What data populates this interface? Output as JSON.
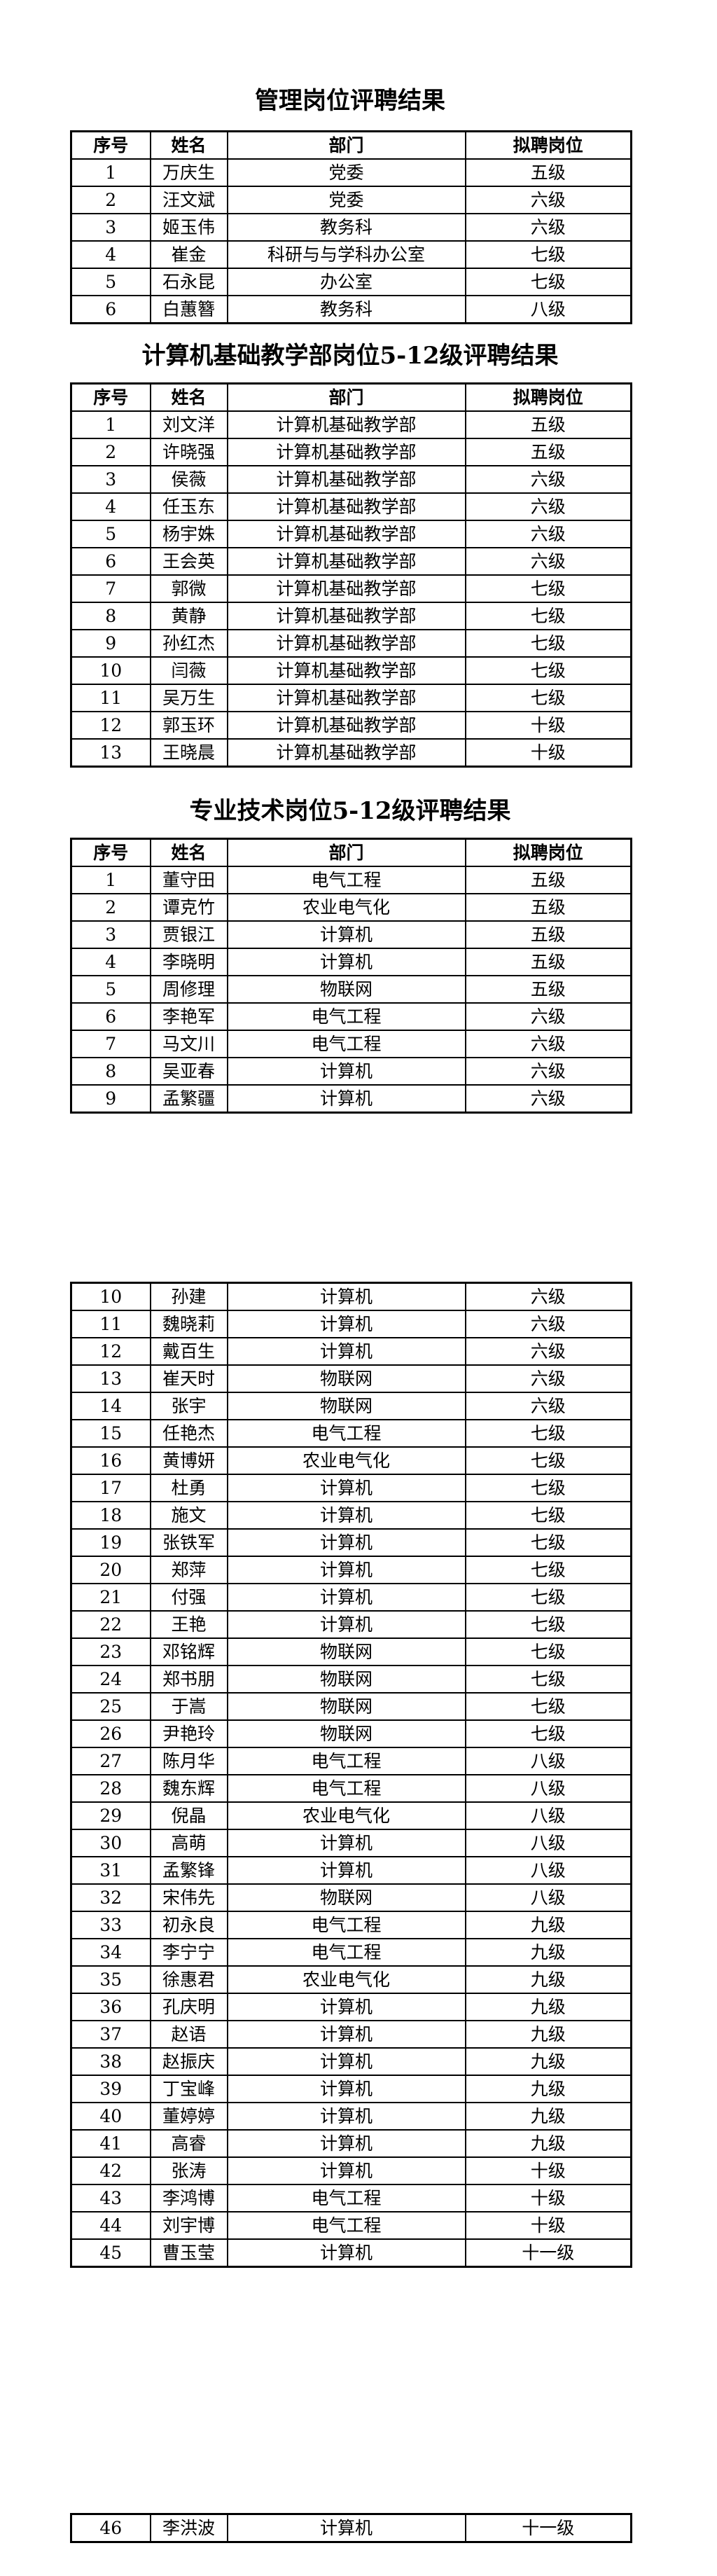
{
  "page": {
    "background": "#ffffff",
    "text_color": "#000000",
    "border_color": "#000000"
  },
  "sections": [
    {
      "title": "管理岗位评聘结果",
      "headers": [
        "序号",
        "姓名",
        "部门",
        "拟聘岗位"
      ],
      "rows": [
        [
          "1",
          "万庆生",
          "党委",
          "五级"
        ],
        [
          "2",
          "汪文斌",
          "党委",
          "六级"
        ],
        [
          "3",
          "姬玉伟",
          "教务科",
          "六级"
        ],
        [
          "4",
          "崔金",
          "科研与与学科办公室",
          "七级"
        ],
        [
          "5",
          "石永昆",
          "办公室",
          "七级"
        ],
        [
          "6",
          "白蕙簪",
          "教务科",
          "八级"
        ]
      ]
    },
    {
      "title": "计算机基础教学部岗位5-12级评聘结果",
      "headers": [
        "序号",
        "姓名",
        "部门",
        "拟聘岗位"
      ],
      "rows": [
        [
          "1",
          "刘文洋",
          "计算机基础教学部",
          "五级"
        ],
        [
          "2",
          "许晓强",
          "计算机基础教学部",
          "五级"
        ],
        [
          "3",
          "侯薇",
          "计算机基础教学部",
          "六级"
        ],
        [
          "4",
          "任玉东",
          "计算机基础教学部",
          "六级"
        ],
        [
          "5",
          "杨宇姝",
          "计算机基础教学部",
          "六级"
        ],
        [
          "6",
          "王会英",
          "计算机基础教学部",
          "六级"
        ],
        [
          "7",
          "郭微",
          "计算机基础教学部",
          "七级"
        ],
        [
          "8",
          "黄静",
          "计算机基础教学部",
          "七级"
        ],
        [
          "9",
          "孙红杰",
          "计算机基础教学部",
          "七级"
        ],
        [
          "10",
          "闫薇",
          "计算机基础教学部",
          "七级"
        ],
        [
          "11",
          "吴万生",
          "计算机基础教学部",
          "七级"
        ],
        [
          "12",
          "郭玉环",
          "计算机基础教学部",
          "十级"
        ],
        [
          "13",
          "王晓晨",
          "计算机基础教学部",
          "十级"
        ]
      ]
    },
    {
      "title": "专业技术岗位5-12级评聘结果",
      "headers": [
        "序号",
        "姓名",
        "部门",
        "拟聘岗位"
      ],
      "rows_page1": [
        [
          "1",
          "董守田",
          "电气工程",
          "五级"
        ],
        [
          "2",
          "谭克竹",
          "农业电气化",
          "五级"
        ],
        [
          "3",
          "贾银江",
          "计算机",
          "五级"
        ],
        [
          "4",
          "李晓明",
          "计算机",
          "五级"
        ],
        [
          "5",
          "周修理",
          "物联网",
          "五级"
        ],
        [
          "6",
          "李艳军",
          "电气工程",
          "六级"
        ],
        [
          "7",
          "马文川",
          "电气工程",
          "六级"
        ],
        [
          "8",
          "吴亚春",
          "计算机",
          "六级"
        ],
        [
          "9",
          "孟繁疆",
          "计算机",
          "六级"
        ]
      ],
      "rows_page2": [
        [
          "10",
          "孙建",
          "计算机",
          "六级"
        ],
        [
          "11",
          "魏晓莉",
          "计算机",
          "六级"
        ],
        [
          "12",
          "戴百生",
          "计算机",
          "六级"
        ],
        [
          "13",
          "崔天时",
          "物联网",
          "六级"
        ],
        [
          "14",
          "张宇",
          "物联网",
          "六级"
        ],
        [
          "15",
          "任艳杰",
          "电气工程",
          "七级"
        ],
        [
          "16",
          "黄博妍",
          "农业电气化",
          "七级"
        ],
        [
          "17",
          "杜勇",
          "计算机",
          "七级"
        ],
        [
          "18",
          "施文",
          "计算机",
          "七级"
        ],
        [
          "19",
          "张铁军",
          "计算机",
          "七级"
        ],
        [
          "20",
          "郑萍",
          "计算机",
          "七级"
        ],
        [
          "21",
          "付强",
          "计算机",
          "七级"
        ],
        [
          "22",
          "王艳",
          "计算机",
          "七级"
        ],
        [
          "23",
          "邓铭辉",
          "物联网",
          "七级"
        ],
        [
          "24",
          "郑书朋",
          "物联网",
          "七级"
        ],
        [
          "25",
          "于嵩",
          "物联网",
          "七级"
        ],
        [
          "26",
          "尹艳玲",
          "物联网",
          "七级"
        ],
        [
          "27",
          "陈月华",
          "电气工程",
          "八级"
        ],
        [
          "28",
          "魏东辉",
          "电气工程",
          "八级"
        ],
        [
          "29",
          "倪晶",
          "农业电气化",
          "八级"
        ],
        [
          "30",
          "高萌",
          "计算机",
          "八级"
        ],
        [
          "31",
          "孟繁锋",
          "计算机",
          "八级"
        ],
        [
          "32",
          "宋伟先",
          "物联网",
          "八级"
        ],
        [
          "33",
          "初永良",
          "电气工程",
          "九级"
        ],
        [
          "34",
          "李宁宁",
          "电气工程",
          "九级"
        ],
        [
          "35",
          "徐惠君",
          "农业电气化",
          "九级"
        ],
        [
          "36",
          "孔庆明",
          "计算机",
          "九级"
        ],
        [
          "37",
          "赵语",
          "计算机",
          "九级"
        ],
        [
          "38",
          "赵振庆",
          "计算机",
          "九级"
        ],
        [
          "39",
          "丁宝峰",
          "计算机",
          "九级"
        ],
        [
          "40",
          "董婷婷",
          "计算机",
          "九级"
        ],
        [
          "41",
          "高睿",
          "计算机",
          "九级"
        ],
        [
          "42",
          "张涛",
          "计算机",
          "十级"
        ],
        [
          "43",
          "李鸿博",
          "电气工程",
          "十级"
        ],
        [
          "44",
          "刘宇博",
          "电气工程",
          "十级"
        ],
        [
          "45",
          "曹玉莹",
          "计算机",
          "十一级"
        ]
      ],
      "rows_page3": [
        [
          "46",
          "李洪波",
          "计算机",
          "十一级"
        ]
      ]
    }
  ]
}
